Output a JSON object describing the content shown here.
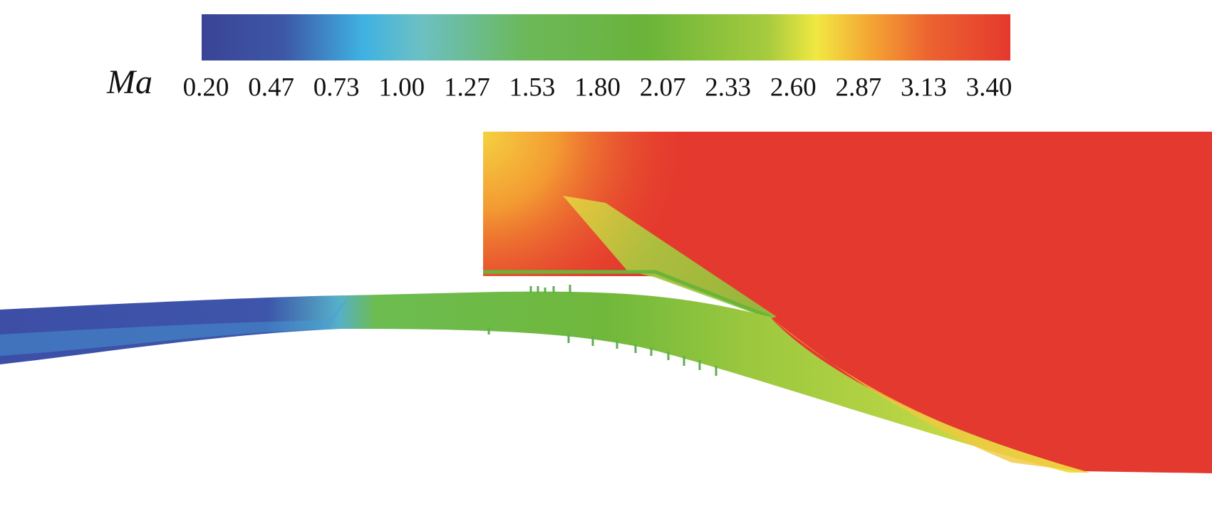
{
  "colorbar": {
    "label": "Ma",
    "ticks": [
      "0.20",
      "0.47",
      "0.73",
      "1.00",
      "1.27",
      "1.53",
      "1.80",
      "2.07",
      "2.33",
      "2.60",
      "2.87",
      "3.13",
      "3.40"
    ]
  }
}
